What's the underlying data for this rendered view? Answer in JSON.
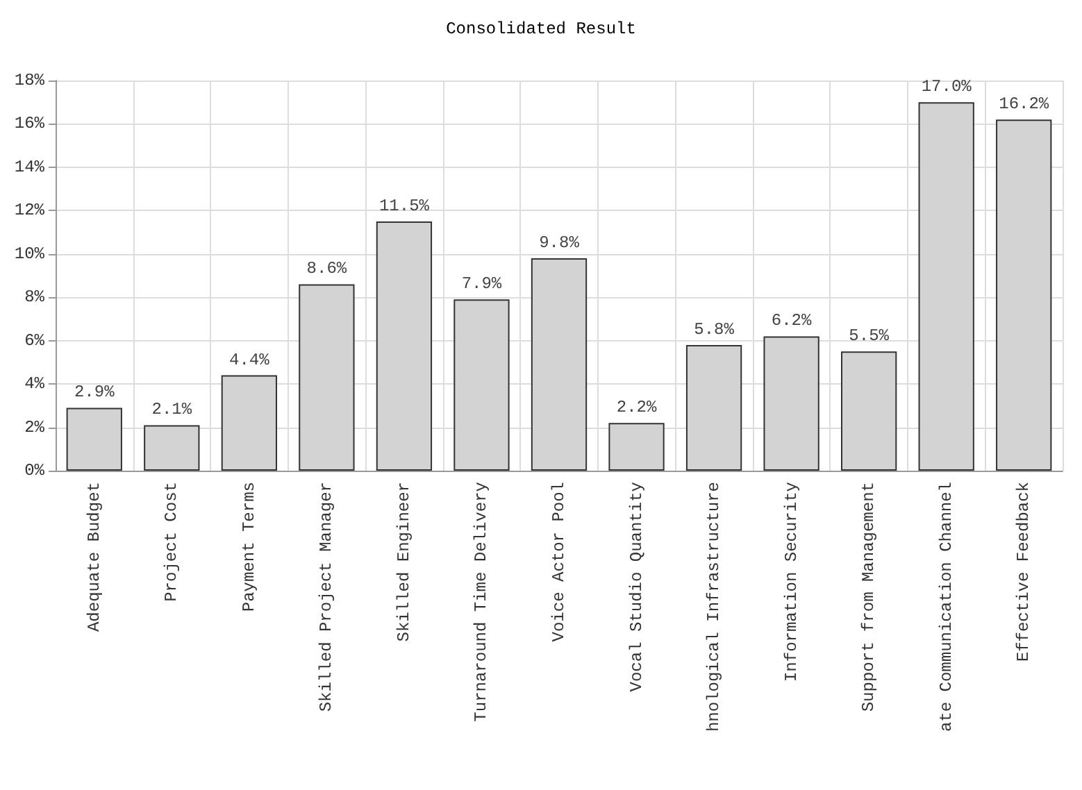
{
  "chart_data": {
    "type": "bar",
    "title": "Consolidated Result",
    "categories": [
      "Adequate Budget",
      "Project Cost",
      "Payment Terms",
      "Skilled Project Manager",
      "Skilled Engineer",
      "Turnaround Time Delivery",
      "Voice Actor Pool",
      "Vocal Studio Quantity",
      "hnological Infrastructure",
      "Information Security",
      "Support from Management",
      "ate Communication Channel",
      "Effective Feedback"
    ],
    "values": [
      2.9,
      2.1,
      4.4,
      8.6,
      11.5,
      7.9,
      9.8,
      2.2,
      5.8,
      6.2,
      5.5,
      17.0,
      16.2
    ],
    "value_labels": [
      "2.9%",
      "2.1%",
      "4.4%",
      "8.6%",
      "11.5%",
      "7.9%",
      "9.8%",
      "2.2%",
      "5.8%",
      "6.2%",
      "5.5%",
      "17.0%",
      "16.2%"
    ],
    "color": "#d3d3d3",
    "ylim": [
      0,
      18
    ],
    "yticks": [
      {
        "value": 0,
        "label": "0%"
      },
      {
        "value": 2,
        "label": "2%"
      },
      {
        "value": 4,
        "label": "4%"
      },
      {
        "value": 6,
        "label": "6%"
      },
      {
        "value": 8,
        "label": "8%"
      },
      {
        "value": 10,
        "label": "10%"
      },
      {
        "value": 12,
        "label": "12%"
      },
      {
        "value": 14,
        "label": "14%"
      },
      {
        "value": 16,
        "label": "16%"
      },
      {
        "value": 18,
        "label": "18%"
      }
    ],
    "grid": true
  }
}
